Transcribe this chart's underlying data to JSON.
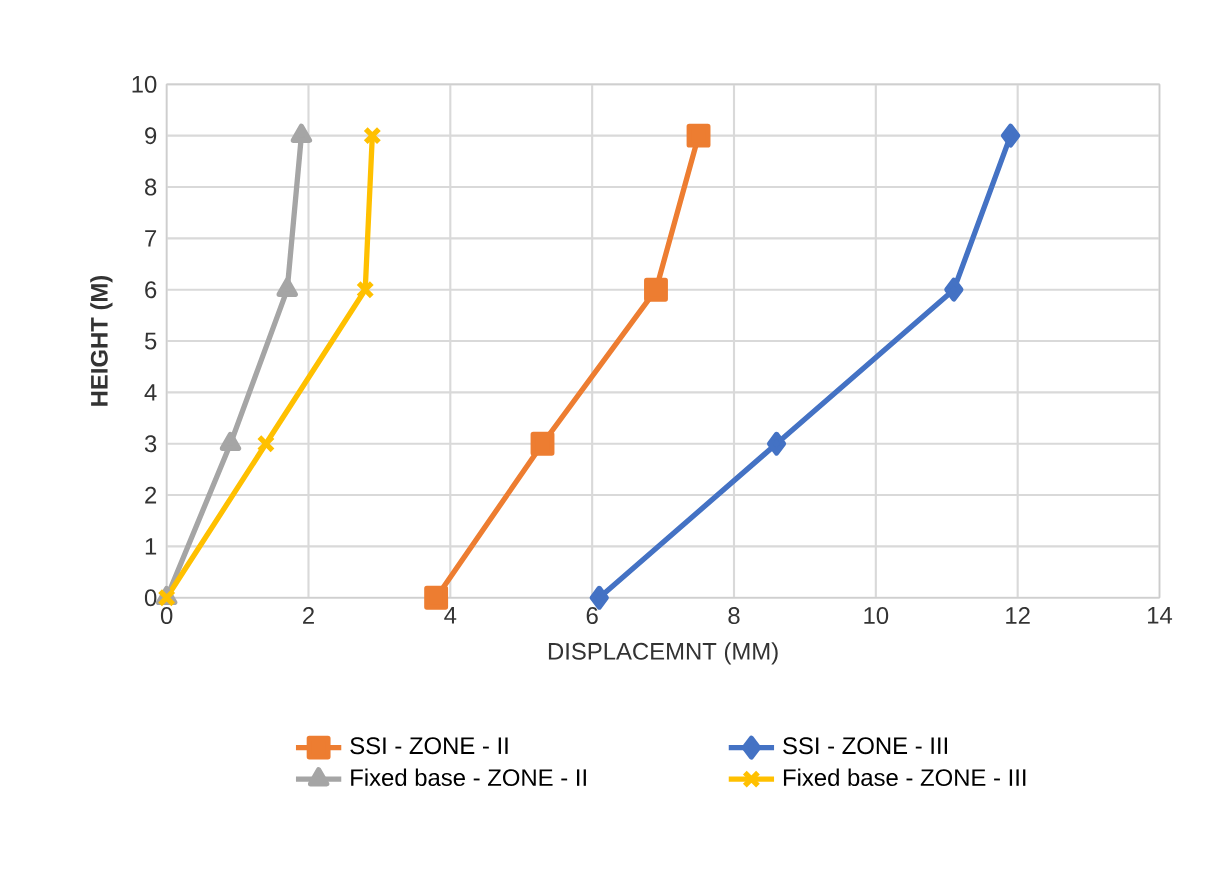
{
  "chart_data": {
    "type": "line",
    "xlabel": "DISPLACEMNT (MM)",
    "ylabel": "HEIGHT (M)",
    "xlim": [
      0,
      14
    ],
    "xticks": [
      0,
      2,
      4,
      6,
      8,
      10,
      12,
      14
    ],
    "ylim": [
      0,
      10
    ],
    "yticks": [
      0,
      1,
      2,
      3,
      4,
      5,
      6,
      7,
      8,
      9,
      10
    ],
    "grid": true,
    "legend": "bottom",
    "line_style": "solid",
    "series": [
      {
        "name": "SSI - ZONE - II",
        "color": "#ed7d31",
        "marker": "square",
        "x": [
          3.8,
          5.3,
          6.9,
          7.5
        ],
        "values": [
          0,
          3,
          6,
          9
        ]
      },
      {
        "name": "SSI - ZONE - III",
        "color": "#4472c4",
        "marker": "diamond",
        "x": [
          6.1,
          8.6,
          11.1,
          11.9
        ],
        "values": [
          0,
          3,
          6,
          9
        ]
      },
      {
        "name": "Fixed base - ZONE - II",
        "color": "#a5a5a5",
        "marker": "triangle",
        "x": [
          0,
          0.9,
          1.7,
          1.9
        ],
        "values": [
          0,
          3,
          6,
          9
        ]
      },
      {
        "name": "Fixed base - ZONE - III",
        "color": "#ffc000",
        "marker": "cross",
        "x": [
          0,
          1.4,
          2.8,
          2.9
        ],
        "values": [
          0,
          3,
          6,
          9
        ]
      }
    ]
  }
}
